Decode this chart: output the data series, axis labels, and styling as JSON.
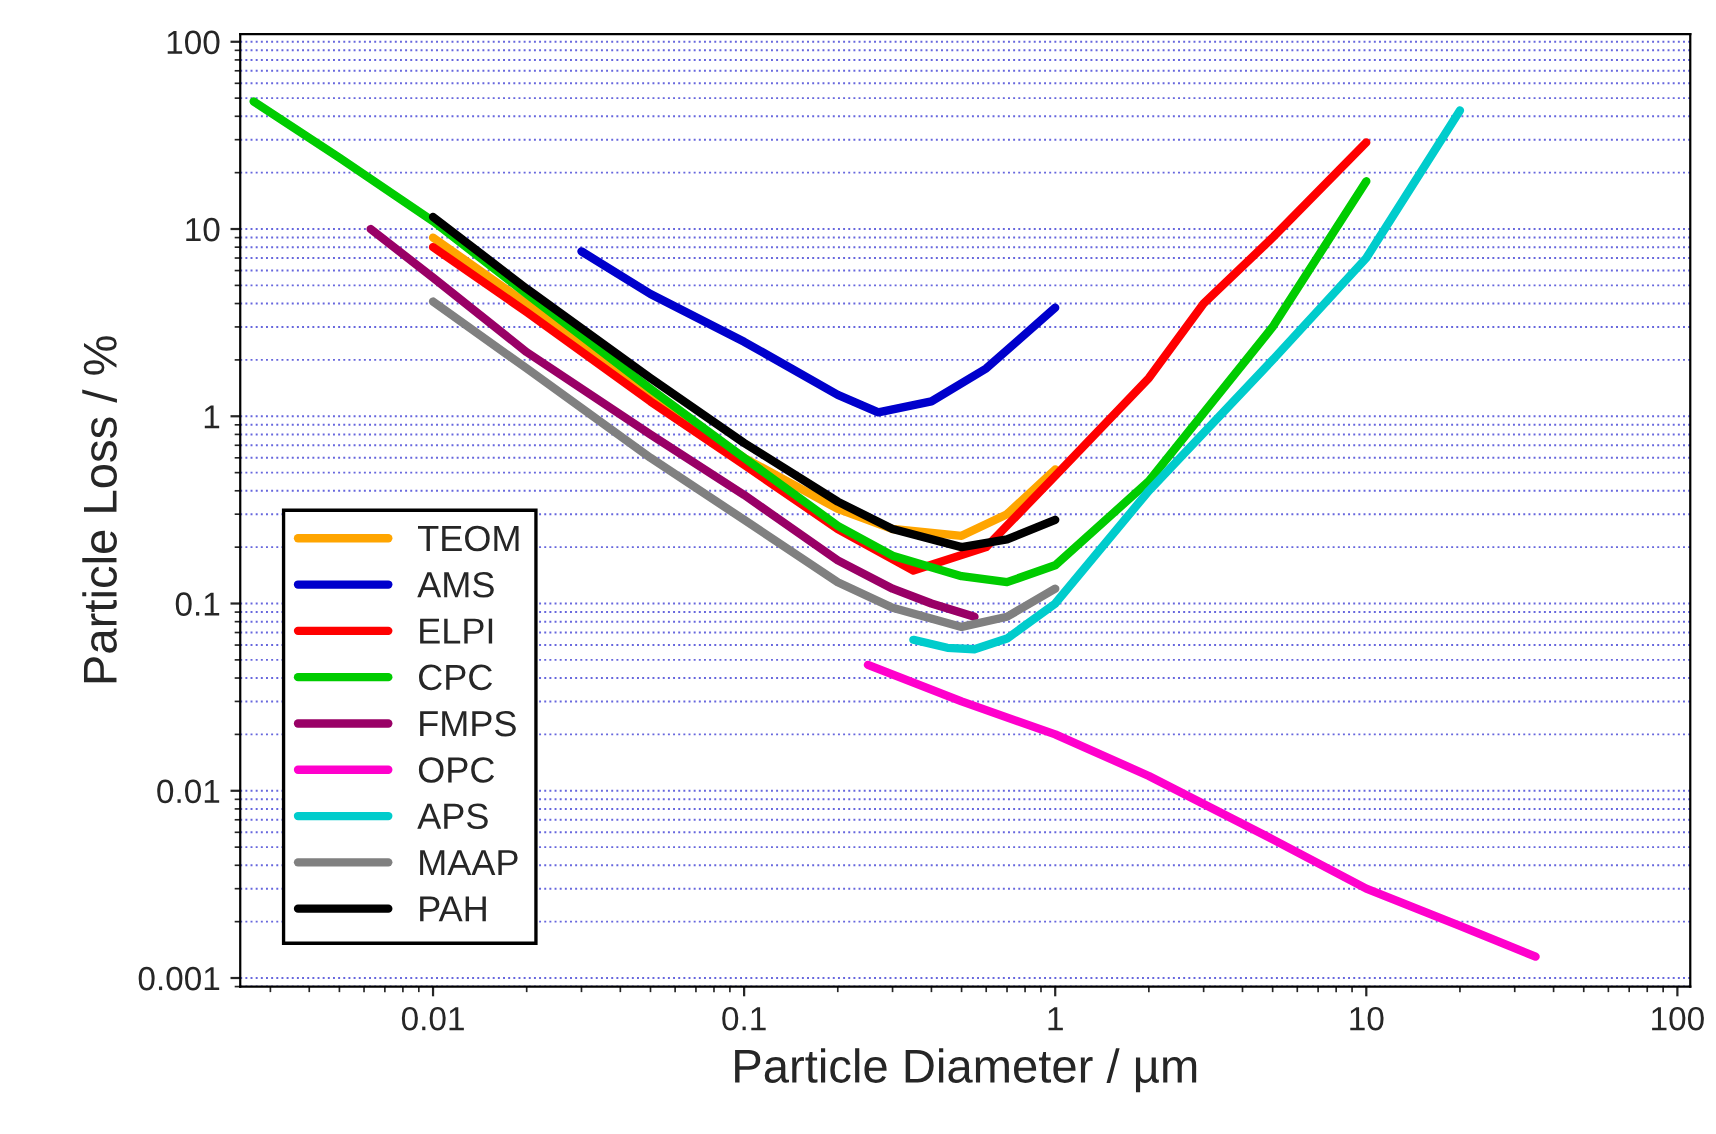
{
  "chart_data": {
    "type": "line",
    "xlabel": "Particle Diameter / µm",
    "ylabel": "Particle Loss / %",
    "log": "xy",
    "grid": "y",
    "legend": "bottom left",
    "line_style": "solid",
    "marker": "none",
    "xlim": [
      0.0024,
      110
    ],
    "ylim": [
      0.0009,
      110
    ],
    "xticks": [
      0.01,
      0.1,
      1,
      10,
      100
    ],
    "yticks": [
      0.001,
      0.01,
      0.1,
      1,
      10,
      100
    ],
    "series": [
      {
        "name": "TEOM",
        "color": "#ffa500",
        "x": [
          0.01,
          0.02,
          0.05,
          0.1,
          0.2,
          0.3,
          0.5,
          0.7,
          1
        ],
        "values": [
          9,
          4,
          1.3,
          0.6,
          0.32,
          0.25,
          0.23,
          0.3,
          0.52
        ]
      },
      {
        "name": "AMS",
        "color": "#0000cc",
        "x": [
          0.03,
          0.05,
          0.1,
          0.2,
          0.27,
          0.4,
          0.6,
          1
        ],
        "values": [
          7.6,
          4.5,
          2.5,
          1.3,
          1.05,
          1.2,
          1.8,
          3.8
        ]
      },
      {
        "name": "ELPI",
        "color": "#ff0000",
        "x": [
          0.01,
          0.02,
          0.05,
          0.1,
          0.2,
          0.35,
          0.6,
          1,
          2,
          3,
          5,
          10
        ],
        "values": [
          8,
          3.6,
          1.2,
          0.55,
          0.25,
          0.15,
          0.2,
          0.48,
          1.6,
          4,
          9,
          29
        ]
      },
      {
        "name": "CPC",
        "color": "#00cc00",
        "x": [
          0.00265,
          0.005,
          0.01,
          0.02,
          0.05,
          0.1,
          0.2,
          0.3,
          0.5,
          0.7,
          1,
          2,
          5,
          10
        ],
        "values": [
          48,
          24,
          11,
          4.5,
          1.4,
          0.6,
          0.26,
          0.18,
          0.14,
          0.13,
          0.16,
          0.45,
          3,
          18
        ]
      },
      {
        "name": "FMPS",
        "color": "#990066",
        "x": [
          0.0063,
          0.01,
          0.02,
          0.05,
          0.1,
          0.2,
          0.3,
          0.4,
          0.55
        ],
        "values": [
          10,
          5.5,
          2.2,
          0.8,
          0.38,
          0.17,
          0.12,
          0.1,
          0.085
        ]
      },
      {
        "name": "OPC",
        "color": "#ff00cc",
        "x": [
          0.25,
          0.5,
          1,
          2,
          5,
          10,
          20,
          35
        ],
        "values": [
          0.047,
          0.03,
          0.02,
          0.012,
          0.0055,
          0.003,
          0.0019,
          0.0013
        ]
      },
      {
        "name": "APS",
        "color": "#00cccc",
        "x": [
          0.35,
          0.45,
          0.55,
          0.7,
          1,
          2,
          5,
          10,
          20
        ],
        "values": [
          0.064,
          0.058,
          0.057,
          0.065,
          0.1,
          0.4,
          2,
          7,
          43
        ]
      },
      {
        "name": "MAAP",
        "color": "#808080",
        "x": [
          0.01,
          0.02,
          0.05,
          0.1,
          0.2,
          0.3,
          0.5,
          0.7,
          1
        ],
        "values": [
          4.1,
          1.8,
          0.6,
          0.28,
          0.13,
          0.095,
          0.075,
          0.085,
          0.12
        ]
      },
      {
        "name": "PAH",
        "color": "#000000",
        "x": [
          0.01,
          0.02,
          0.05,
          0.1,
          0.2,
          0.3,
          0.5,
          0.7,
          1
        ],
        "values": [
          11.6,
          4.8,
          1.6,
          0.72,
          0.35,
          0.25,
          0.2,
          0.22,
          0.28
        ]
      }
    ]
  }
}
